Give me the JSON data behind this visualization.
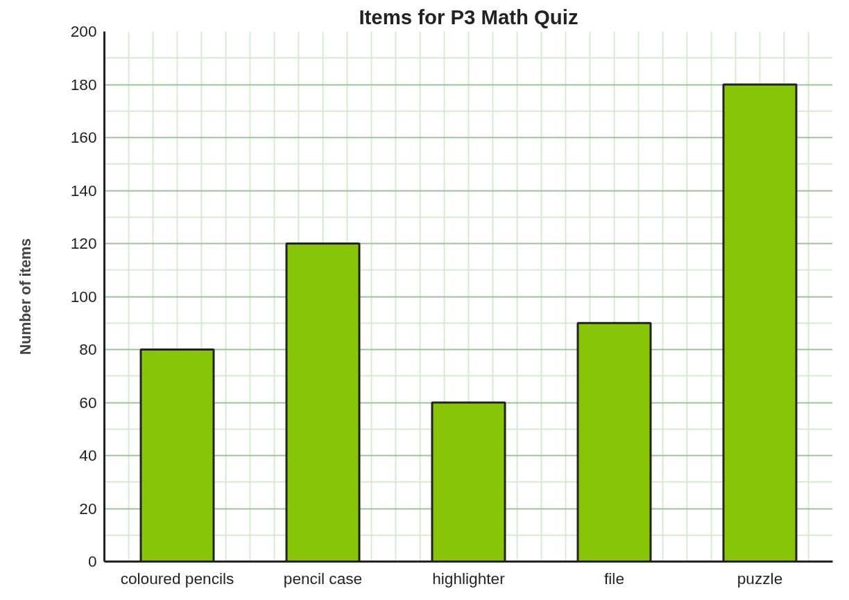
{
  "chart_data": {
    "type": "bar",
    "title": "Items for P3 Math Quiz",
    "ylabel": "Number of items",
    "categories": [
      "coloured pencils",
      "pencil case",
      "highlighter",
      "file",
      "puzzle"
    ],
    "values": [
      80,
      120,
      60,
      90,
      180
    ],
    "color": "#88c408",
    "ylim": [
      0,
      200
    ],
    "yticks": [
      0,
      20,
      40,
      60,
      80,
      100,
      120,
      140,
      160,
      180,
      200
    ],
    "grid": true
  }
}
